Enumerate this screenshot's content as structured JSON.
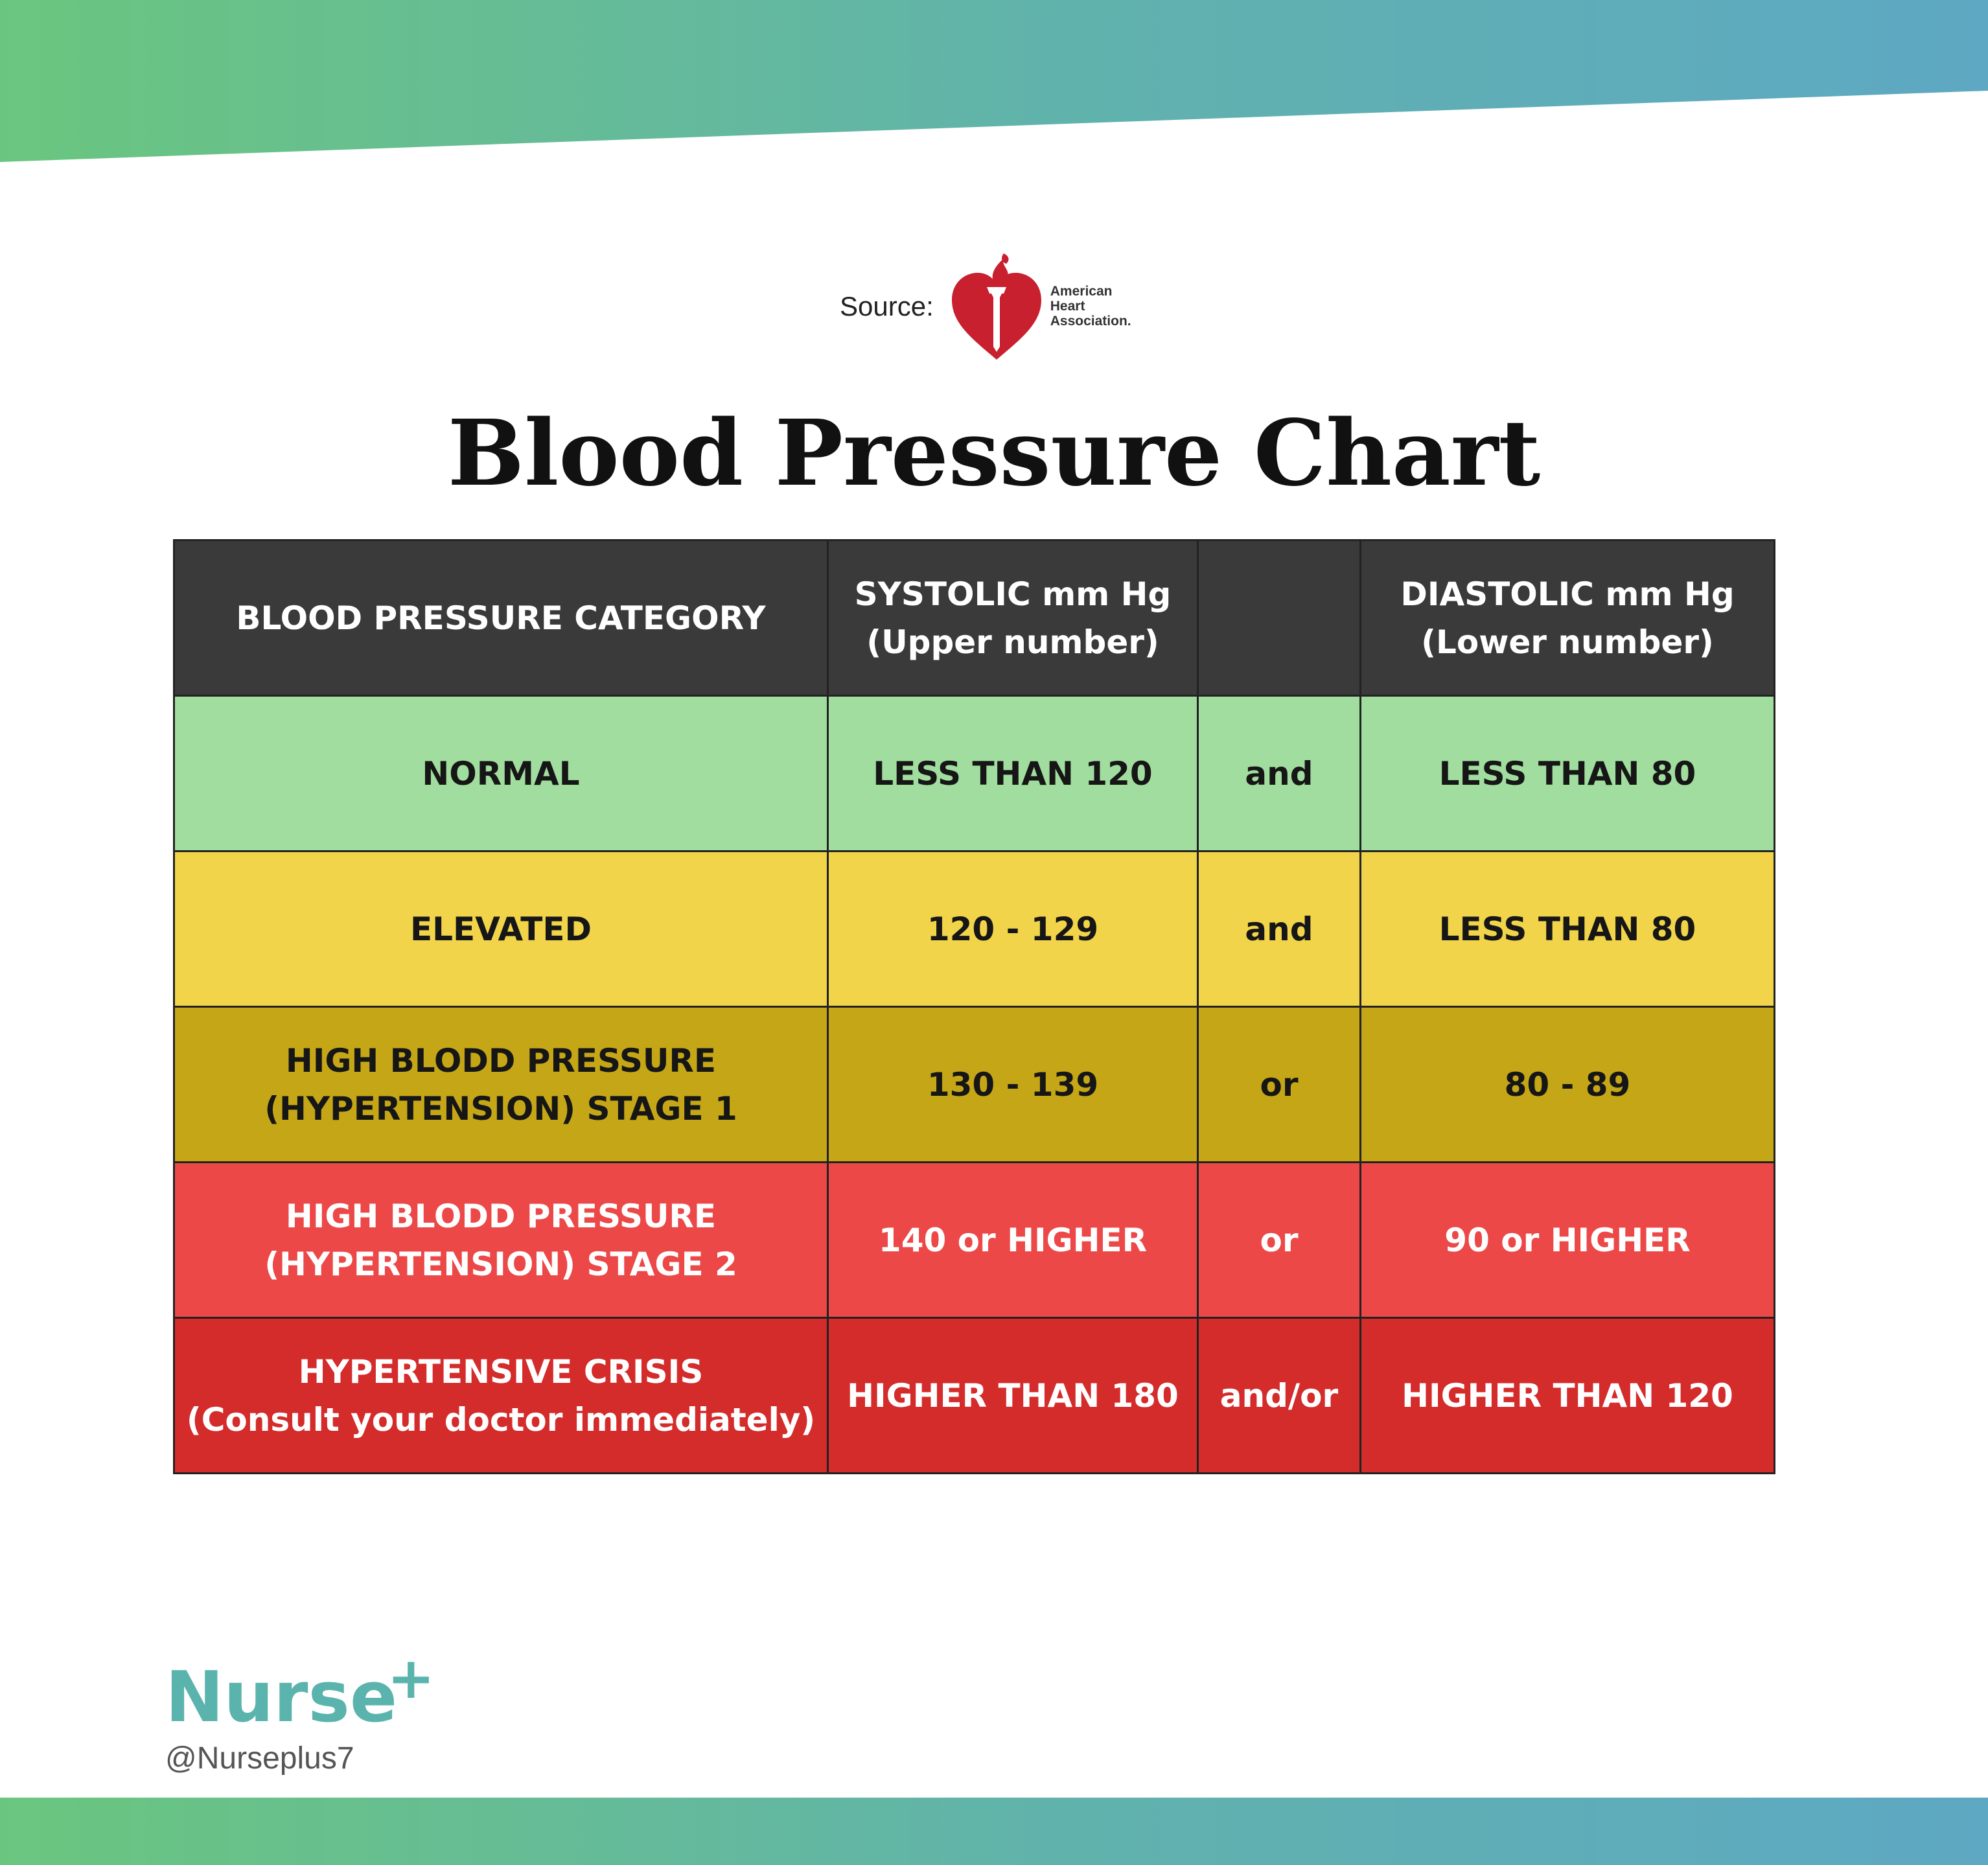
{
  "colors": {
    "band_start": "#6ac67f",
    "band_end": "#5ea8c3",
    "header_bg": "#3a3a3a",
    "normal": "#a1dd9e",
    "elevated": "#f1d44a",
    "stage1": "#c5a616",
    "stage2": "#ec4848",
    "crisis": "#d42b2b",
    "brand": "#5ab4ad",
    "aha_red": "#c8202f"
  },
  "source": {
    "label": "Source:",
    "logo_lines": [
      "American",
      "Heart",
      "Association."
    ]
  },
  "title": "Blood Pressure Chart",
  "table": {
    "headers": {
      "category": "BLOOD PRESSURE CATEGORY",
      "systolic": [
        "SYSTOLIC mm Hg",
        "(Upper number)"
      ],
      "connector": "",
      "diastolic": [
        "DIASTOLIC mm Hg",
        "(Lower number)"
      ]
    },
    "rows": [
      {
        "category": [
          "NORMAL"
        ],
        "systolic": "LESS THAN 120",
        "connector": "and",
        "diastolic": "LESS THAN 80"
      },
      {
        "category": [
          "ELEVATED"
        ],
        "systolic": "120 - 129",
        "connector": "and",
        "diastolic": "LESS THAN 80"
      },
      {
        "category": [
          "HIGH BLODD PRESSURE",
          "(HYPERTENSION) STAGE 1"
        ],
        "systolic": "130 - 139",
        "connector": "or",
        "diastolic": "80 - 89"
      },
      {
        "category": [
          "HIGH BLODD PRESSURE",
          "(HYPERTENSION) STAGE 2"
        ],
        "systolic": "140 or HIGHER",
        "connector": "or",
        "diastolic": "90 or HIGHER"
      },
      {
        "category": [
          "HYPERTENSIVE CRISIS",
          "(Consult your doctor immediately)"
        ],
        "systolic": "HIGHER THAN 180",
        "connector": "and/or",
        "diastolic": "HIGHER THAN 120"
      }
    ]
  },
  "brand": {
    "name": "Nurse",
    "plus": "+",
    "handle": "@Nurseplus7"
  }
}
